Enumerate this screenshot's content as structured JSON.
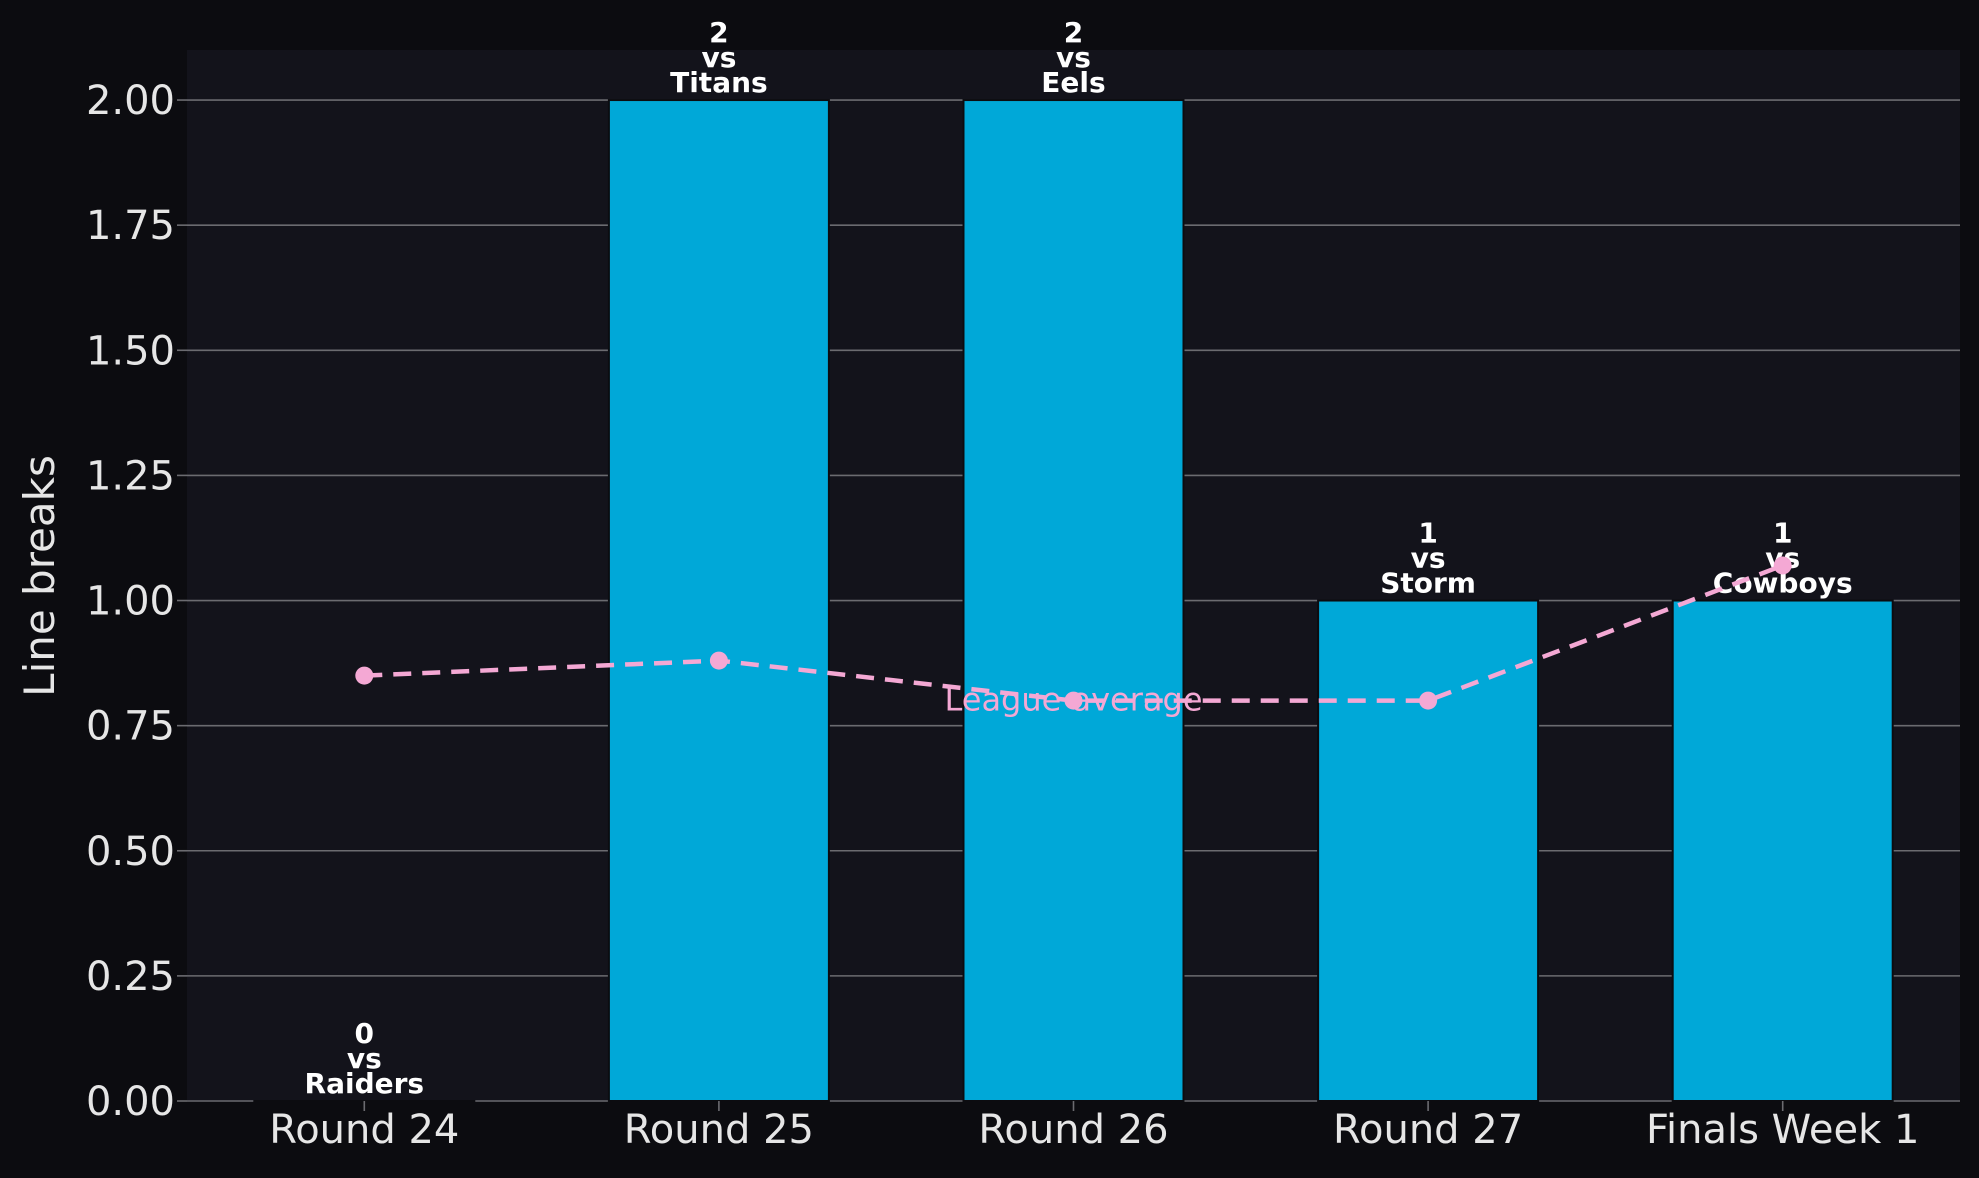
{
  "colors": {
    "page_background": "#0c0c10",
    "plot_background": "#13131b",
    "bar": "#00a8d8",
    "bar_edge": "#0c0c10",
    "line": "#f4a8d4",
    "grid": "#6b6b70",
    "text": "#e6e6e6",
    "label_text": "#ffffff"
  },
  "chart_data": {
    "type": "bar",
    "title": "",
    "xlabel": "",
    "ylabel": "Line breaks",
    "ylim": [
      0,
      2.1
    ],
    "yticks": [
      "0.00",
      "0.25",
      "0.50",
      "0.75",
      "1.00",
      "1.25",
      "1.50",
      "1.75",
      "2.00"
    ],
    "grid": "horizontal",
    "categories": [
      "Round 24",
      "Round 25",
      "Round 26",
      "Round 27",
      "Finals Week 1"
    ],
    "series": [
      {
        "kind": "bar",
        "values": [
          0,
          2,
          2,
          1,
          1
        ],
        "opponents": [
          "Raiders",
          "Titans",
          "Eels",
          "Storm",
          "Cowboys"
        ],
        "bar_labels": [
          [
            "0",
            "vs",
            "Raiders"
          ],
          [
            "2",
            "vs",
            "Titans"
          ],
          [
            "2",
            "vs",
            "Eels"
          ],
          [
            "1",
            "vs",
            "Storm"
          ],
          [
            "1",
            "vs",
            "Cowboys"
          ]
        ]
      },
      {
        "kind": "line",
        "style": "dashed",
        "values": [
          0.85,
          0.88,
          0.8,
          0.8,
          1.07
        ]
      }
    ],
    "annotations": [
      {
        "text": "League average",
        "category": "Round 26",
        "y": 0.78
      }
    ]
  }
}
